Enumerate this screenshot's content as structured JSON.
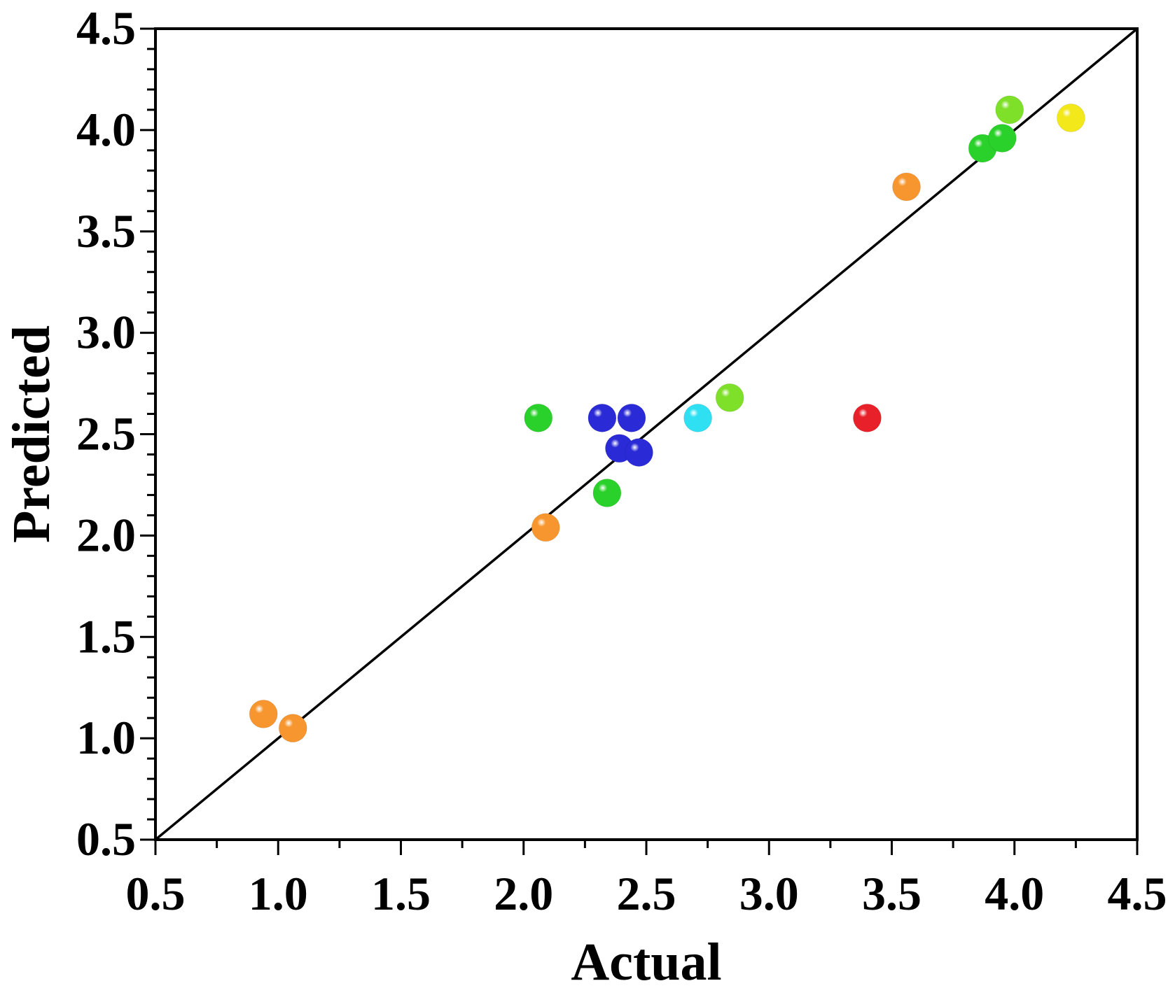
{
  "chart_data": {
    "type": "scatter",
    "title": "",
    "xlabel": "Actual",
    "ylabel": "Predicted",
    "xlim": [
      0.5,
      4.5
    ],
    "ylim": [
      0.5,
      4.5
    ],
    "x_ticks": [
      "0.5",
      "1.0",
      "1.5",
      "2.0",
      "2.5",
      "3.0",
      "3.5",
      "4.0",
      "4.5"
    ],
    "y_ticks": [
      "0.5",
      "1.0",
      "1.5",
      "2.0",
      "2.5",
      "3.0",
      "3.5",
      "4.0",
      "4.5"
    ],
    "reference_line": "y = x",
    "grid": false,
    "legend": "none",
    "points": [
      {
        "x": 0.94,
        "y": 1.12,
        "color": "#f7962f"
      },
      {
        "x": 1.06,
        "y": 1.05,
        "color": "#f7962f"
      },
      {
        "x": 2.09,
        "y": 2.04,
        "color": "#f7962f"
      },
      {
        "x": 3.56,
        "y": 3.72,
        "color": "#f7962f"
      },
      {
        "x": 2.06,
        "y": 2.58,
        "color": "#2bd12b"
      },
      {
        "x": 2.34,
        "y": 2.21,
        "color": "#2bd12b"
      },
      {
        "x": 3.87,
        "y": 3.91,
        "color": "#2bd12b"
      },
      {
        "x": 3.95,
        "y": 3.96,
        "color": "#2bd12b"
      },
      {
        "x": 2.32,
        "y": 2.58,
        "color": "#2a2ad6"
      },
      {
        "x": 2.44,
        "y": 2.58,
        "color": "#2a2ad6"
      },
      {
        "x": 2.39,
        "y": 2.43,
        "color": "#2a2ad6"
      },
      {
        "x": 2.47,
        "y": 2.41,
        "color": "#2a2ad6"
      },
      {
        "x": 2.71,
        "y": 2.58,
        "color": "#2fe0f2"
      },
      {
        "x": 2.84,
        "y": 2.68,
        "color": "#7fe02a"
      },
      {
        "x": 3.98,
        "y": 4.1,
        "color": "#7fe02a"
      },
      {
        "x": 3.4,
        "y": 2.58,
        "color": "#e8202a"
      },
      {
        "x": 4.23,
        "y": 4.06,
        "color": "#f2e81a"
      }
    ]
  }
}
